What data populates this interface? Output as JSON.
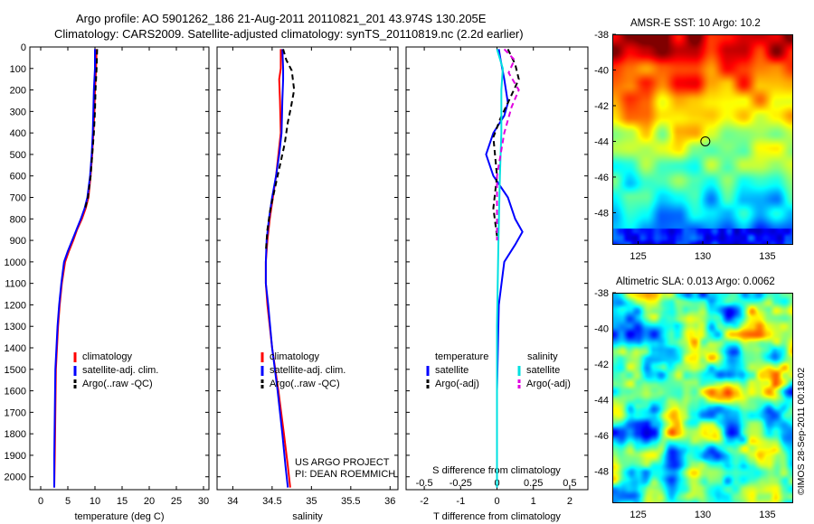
{
  "header": {
    "line1": "Argo profile: AO 5901262_186 21-Aug-2011 20110821_201 43.974S 130.205E",
    "line2": "Climatology: CARS2009. Satellite-adjusted climatology: synTS_20110819.nc (2.2d earlier)"
  },
  "credit": {
    "line1": "US ARGO PROJECT",
    "line2": "PI: DEAN ROEMMICH"
  },
  "timestamp": "©IMOS 28-Sep-2011 00:18:02",
  "colors": {
    "climatology": "#ff0000",
    "satellite": "#0000ff",
    "argo": "#000000",
    "salinity_satellite": "#00e0e0",
    "salinity_argo": "#e000e0"
  },
  "chart_data": [
    {
      "type": "line",
      "id": "temperature",
      "xlabel": "temperature (deg C)",
      "ylabel": "",
      "xlim": [
        -2,
        31
      ],
      "ylim": [
        2060,
        0
      ],
      "xticks": [
        "0",
        "5",
        "10",
        "15",
        "20",
        "25",
        "30"
      ],
      "yticks": [
        "0",
        "100",
        "200",
        "300",
        "400",
        "500",
        "600",
        "700",
        "800",
        "900",
        "1000",
        "1100",
        "1200",
        "1300",
        "1400",
        "1500",
        "1600",
        "1700",
        "1800",
        "1900",
        "2000"
      ],
      "legend": [
        "climatology",
        "satellite-adj. clim.",
        "Argo(..raw -QC)"
      ],
      "legend_position": "lower-right",
      "series": [
        {
          "name": "climatology",
          "style": "solid",
          "color": "#ff0000",
          "x": [
            10.3,
            10.2,
            10.0,
            9.9,
            9.7,
            9.5,
            9.2,
            8.8,
            8.3,
            7.6,
            6.7,
            6.0,
            5.2,
            4.5,
            3.9,
            3.5,
            3.2,
            3.0,
            2.8,
            2.7,
            2.6,
            2.5
          ],
          "y": [
            10,
            100,
            200,
            300,
            400,
            500,
            600,
            700,
            750,
            800,
            850,
            900,
            950,
            1000,
            1100,
            1200,
            1300,
            1400,
            1500,
            1700,
            1900,
            2050
          ]
        },
        {
          "name": "satellite-adj. clim.",
          "style": "solid",
          "color": "#0000ff",
          "x": [
            10.0,
            10.0,
            9.8,
            9.7,
            9.6,
            9.4,
            9.1,
            8.6,
            8.1,
            7.4,
            6.6,
            5.8,
            5.0,
            4.3,
            3.8,
            3.4,
            3.1,
            2.9,
            2.7,
            2.6,
            2.5,
            2.5
          ],
          "y": [
            10,
            100,
            200,
            300,
            400,
            500,
            600,
            700,
            750,
            800,
            850,
            900,
            950,
            1000,
            1100,
            1200,
            1300,
            1400,
            1500,
            1700,
            1900,
            2050
          ]
        },
        {
          "name": "Argo(..raw -QC)",
          "style": "dashed",
          "color": "#000000",
          "x": [
            10.4,
            10.3,
            10.1,
            10.0,
            9.8,
            9.5,
            9.2,
            8.7,
            8.2
          ],
          "y": [
            10,
            100,
            200,
            300,
            400,
            500,
            600,
            700,
            750
          ]
        }
      ]
    },
    {
      "type": "line",
      "id": "salinity",
      "xlabel": "salinity",
      "xlim": [
        33.8,
        36.1
      ],
      "ylim": [
        2060,
        0
      ],
      "xticks": [
        "34",
        "34.5",
        "35",
        "35.5",
        "36"
      ],
      "legend": [
        "climatology",
        "satellite-adj. clim.",
        "Argo(..raw -QC)"
      ],
      "legend_position": "lower-right",
      "series": [
        {
          "name": "climatology",
          "style": "solid",
          "color": "#ff0000",
          "x": [
            34.61,
            34.61,
            34.59,
            34.6,
            34.61,
            34.58,
            34.55,
            34.51,
            34.47,
            34.44,
            34.42,
            34.42,
            34.44,
            34.5,
            34.58,
            34.65,
            34.7,
            34.73
          ],
          "y": [
            10,
            100,
            150,
            250,
            400,
            500,
            600,
            700,
            800,
            900,
            1000,
            1100,
            1200,
            1400,
            1600,
            1800,
            1950,
            2050
          ]
        },
        {
          "name": "satellite-adj. clim.",
          "style": "solid",
          "color": "#0000ff",
          "x": [
            34.63,
            34.64,
            34.64,
            34.63,
            34.62,
            34.59,
            34.55,
            34.5,
            34.46,
            34.43,
            34.42,
            34.42,
            34.45,
            34.5,
            34.57,
            34.63,
            34.67,
            34.7
          ],
          "y": [
            10,
            100,
            150,
            250,
            400,
            500,
            600,
            700,
            800,
            900,
            1000,
            1100,
            1200,
            1400,
            1600,
            1800,
            1950,
            2050
          ]
        },
        {
          "name": "Argo(..raw -QC)",
          "style": "dashed",
          "color": "#000000",
          "x": [
            34.64,
            34.68,
            34.75,
            34.78,
            34.74,
            34.7,
            34.66,
            34.6,
            34.54,
            34.48,
            34.44,
            34.42
          ],
          "y": [
            10,
            60,
            110,
            200,
            280,
            350,
            450,
            550,
            650,
            750,
            850,
            950
          ]
        }
      ]
    },
    {
      "type": "line",
      "id": "difference",
      "xlabel": "T difference from climatology",
      "xlabel_top": "S difference from climatology",
      "xlim": [
        -2.5,
        2.5
      ],
      "ylim": [
        2060,
        0
      ],
      "xticks": [
        "-2",
        "-1",
        "0",
        "1",
        "2"
      ],
      "xticks_top": [
        "-0.5",
        "-0.25",
        "0",
        "0.25",
        "0.5"
      ],
      "legend_titles": [
        "temperature",
        "salinity"
      ],
      "legend": [
        "satellite",
        "Argo(-adj)",
        "satellite",
        "Argo(-adj)"
      ],
      "legend_position": "lower-center",
      "series": [
        {
          "name": "temperature satellite",
          "style": "solid",
          "color": "#0000ff",
          "x": [
            0.05,
            0.1,
            0.2,
            0.3,
            0.2,
            -0.1,
            -0.3,
            -0.1,
            0.3,
            0.5,
            0.7,
            0.5,
            0.2,
            0.05,
            0.0,
            0.0
          ],
          "y": [
            10,
            60,
            150,
            260,
            320,
            400,
            500,
            600,
            700,
            800,
            860,
            920,
            1000,
            1200,
            1600,
            2050
          ]
        },
        {
          "name": "temperature Argo(-adj)",
          "style": "dashed",
          "color": "#000000",
          "x": [
            0.3,
            0.5,
            0.6,
            0.3,
            0.1,
            -0.1,
            0.0,
            -0.1,
            0.0
          ],
          "y": [
            10,
            80,
            150,
            260,
            330,
            420,
            600,
            750,
            880
          ]
        },
        {
          "name": "salinity satellite",
          "style": "solid",
          "color": "#00e0e0",
          "x": [
            0.0,
            0.04,
            0.03,
            0.03,
            0.02,
            0.01,
            0.0,
            0.0
          ],
          "y": [
            10,
            100,
            200,
            400,
            600,
            900,
            1300,
            2050
          ]
        },
        {
          "name": "salinity Argo(-adj)",
          "style": "dashed",
          "color": "#e000e0",
          "x": [
            0.05,
            0.12,
            0.08,
            0.15,
            0.1,
            0.05,
            0.0,
            0.0,
            0.0
          ],
          "y": [
            10,
            60,
            120,
            200,
            280,
            400,
            600,
            800,
            900
          ]
        }
      ]
    },
    {
      "type": "heatmap",
      "id": "sst-map",
      "title": "AMSR-E SST: 10 Argo: 10.2",
      "xlim": [
        123,
        137
      ],
      "ylim": [
        -49.8,
        -38
      ],
      "xticks": [
        "125",
        "130",
        "135"
      ],
      "yticks": [
        "-38",
        "-40",
        "-42",
        "-44",
        "-46",
        "-48"
      ],
      "marker": {
        "lon": 130.2,
        "lat": -44.0
      }
    },
    {
      "type": "heatmap",
      "id": "sla-map",
      "title": "Altimetric SLA: 0.013 Argo: 0.0062",
      "xlim": [
        123,
        137
      ],
      "ylim": [
        -49.8,
        -38
      ],
      "xticks": [
        "125",
        "130",
        "135"
      ],
      "yticks": [
        "-38",
        "-40",
        "-42",
        "-44",
        "-46",
        "-48"
      ],
      "marker": {
        "lon": 130.2,
        "lat": -44.0
      }
    }
  ]
}
